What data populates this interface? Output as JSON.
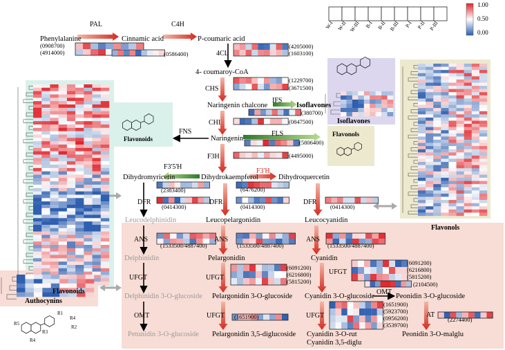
{
  "legend": {
    "max_label": "1.00",
    "mid_label": "0.50",
    "min_label": "0.00",
    "samples": [
      "W-I",
      "W-II",
      "W-III",
      "B-I",
      "B-II",
      "B-III",
      "P-I",
      "P-II",
      "P-III"
    ],
    "color_high": "#e0262c",
    "color_mid": "#ffffff",
    "color_low": "#2e5fb0"
  },
  "metabolites": {
    "phenylalanine": "Phenylalanine",
    "cinnamic_acid": "Cinnamic acid",
    "p_coumaric_acid": "P-coumaric acid",
    "coumaroyl_coa": "4- coumaroy-CoA",
    "naringenin_chalcone": "Naringenin chalcone",
    "isoflavones": "Isoflavones",
    "naringenin": "Naringenin",
    "dihydromyricetin": "Dihydromyricetin",
    "dihydrokaempferol": "Dihydrokaempferol",
    "dihydroquercetin": "Dihydroquercetin",
    "leucodelphinidin": "Leucodelphinidin",
    "leucopelargonidin": "Leucopelargonidin",
    "leucocyanidin": "Leucocyanidin",
    "delphinidin": "Delphinidin",
    "pelargonidin": "Pelargonidin",
    "cyanidin": "Cyanidin",
    "delphinidin_glc": "Delphinidin 3-O-glucoside",
    "pelargonidin_glc": "Pelargonidin 3-O-glucoside",
    "cyanidin_glc": "Cyanidin 3-O-glucoside",
    "peonidin_glc": "Peonidin 3-O-glucoside",
    "petunidin_glc": "Petunidin 3-O-glucoside",
    "pelargonidin_diglc": "Pelargonidin 3,5-diglucoside",
    "cyanidin_rut": "Cyanidin 3-O-rut",
    "cyanidin_diglu": "Cyanidin 3,5-diglu",
    "peonidin_malglu": "Peonidin 3-O-malglu",
    "flavonoids": "Flavonoids",
    "flavonols": "Flavonols"
  },
  "enzymes": {
    "pal": "PAL",
    "c4h": "C4H",
    "cl4": "4CL",
    "chs": "CHS",
    "ifs": "IFS",
    "chi": "CHI",
    "fns": "FNS",
    "fls": "FLS",
    "f3h": "F3H",
    "f35h": "F3'5'H",
    "f3h_prime": "F3'H",
    "dfr": "DFR",
    "ans": "ANS",
    "ufgt": "UFGT",
    "omt": "OMT",
    "at": "AT"
  },
  "gene_ids": {
    "pal": [
      "(0908700)",
      "(4914000)"
    ],
    "c4h": [
      "(0586400)"
    ],
    "cl4": [
      "(4205000)",
      "(1603100)"
    ],
    "chs": [
      "(1229700)",
      "(3671500)"
    ],
    "ifs": [
      "(380700)"
    ],
    "chi": [
      "(0847500)"
    ],
    "fls": [
      "(5806400)"
    ],
    "f3h": [
      "(4495000)"
    ],
    "f35h": [
      "(2383400)"
    ],
    "f3h_prime": [
      "(6476200)"
    ],
    "dfr_left": [
      "(0414300)"
    ],
    "dfr_mid": [
      "(0414300)"
    ],
    "dfr_right": [
      "(0414300)"
    ],
    "ans_left": [
      "(1533500/4887400)"
    ],
    "ans_mid": [
      "(1533500/4887400)"
    ],
    "ans_right": [
      "(1533500/4887400)"
    ],
    "ufgt_mid": [
      "(6091200)",
      "(6216800)",
      "(5815200)"
    ],
    "ufgt_right": [
      "(6091200)",
      "(6216800)",
      "(5815200)"
    ],
    "omt_right": [
      "(2104500)"
    ],
    "ufgt_mid2": [
      "(1651900)"
    ],
    "ufgt_right2": [
      "(1651900)",
      "(5923700)",
      "(0956200)",
      "(3539700)"
    ],
    "at": [
      "(2274400)"
    ]
  },
  "panels": {
    "flavonoids_title": "Flavonoids",
    "flavonols_title": "Flavonols",
    "isoflavones_title": "Isoflavones",
    "anthocyanins_title": "Authocynins",
    "structure_labels": [
      "R1",
      "R2",
      "R3",
      "R4",
      "R5",
      "R4"
    ]
  },
  "colors": {
    "flavonoid_panel": "#d9f1ea",
    "flavonol_panel": "#ece9cf",
    "isoflavone_panel": "#dcd7ee",
    "anthocyanin_panel": "#f7ddd5",
    "arrow_red": "#d42a20",
    "arrow_green": "#5fae3c"
  }
}
